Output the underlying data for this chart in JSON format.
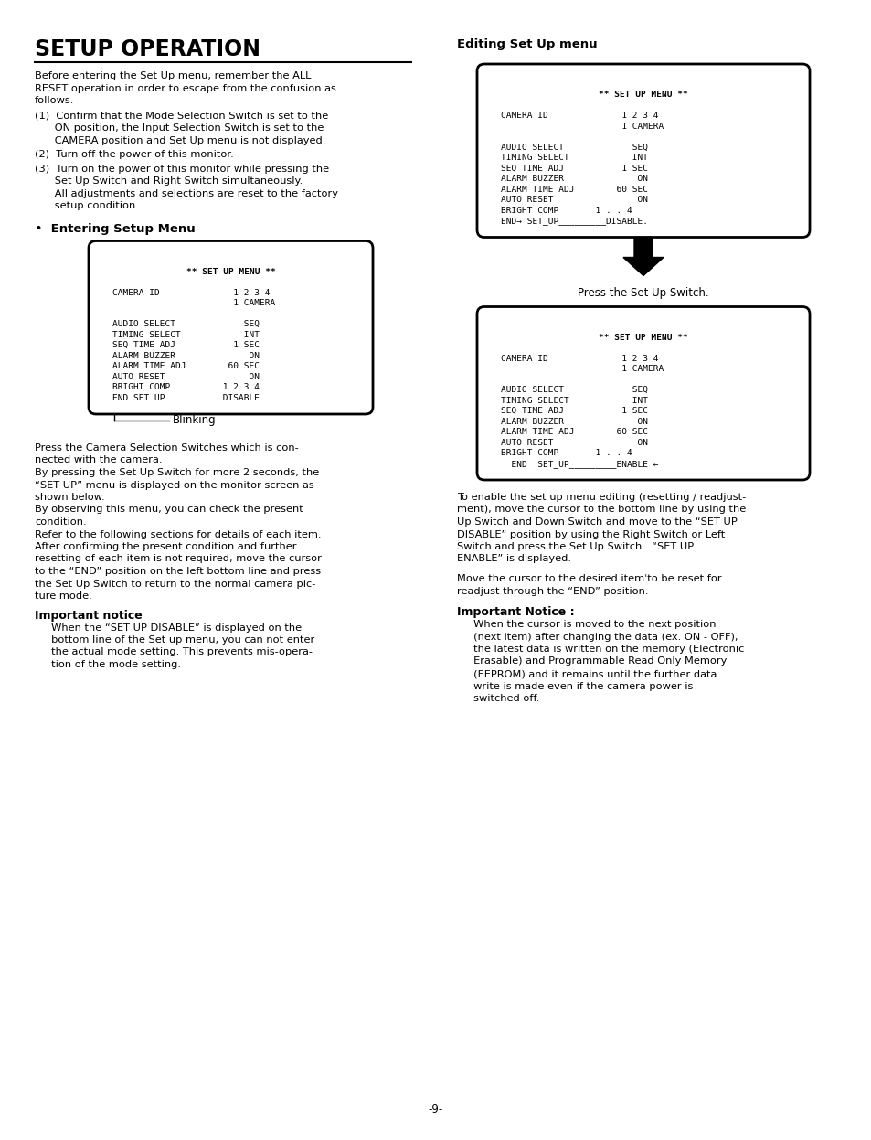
{
  "page_background": "#ffffff",
  "title": "SETUP OPERATION",
  "right_title": "Editing Set Up menu",
  "menu_box1_lines": [
    "** SET UP MENU **",
    "",
    "CAMERA ID              1 2 3 4",
    "                       1 CAMERA",
    "",
    "AUDIO SELECT             SEQ",
    "TIMING SELECT            INT",
    "SEQ TIME ADJ           1 SEC",
    "ALARM BUZZER              ON",
    "ALARM TIME ADJ        60 SEC",
    "AUTO RESET                ON",
    "BRIGHT COMP          1 2 3 4",
    "END SET UP           DISABLE"
  ],
  "blinking_label": "Blinking",
  "menu_box2_lines": [
    "** SET UP MENU **",
    "",
    "CAMERA ID              1 2 3 4",
    "                       1 CAMERA",
    "",
    "AUDIO SELECT             SEQ",
    "TIMING SELECT            INT",
    "SEQ TIME ADJ           1 SEC",
    "ALARM BUZZER              ON",
    "ALARM TIME ADJ        60 SEC",
    "AUTO RESET                ON",
    "BRIGHT COMP       1 . . 4",
    "END→ SET_UP_________DISABLE."
  ],
  "press_setup_label": "Press the Set Up Switch.",
  "menu_box3_lines": [
    "** SET UP MENU **",
    "",
    "CAMERA ID              1 2 3 4",
    "                       1 CAMERA",
    "",
    "AUDIO SELECT             SEQ",
    "TIMING SELECT            INT",
    "SEQ TIME ADJ           1 SEC",
    "ALARM BUZZER              ON",
    "ALARM TIME ADJ        60 SEC",
    "AUTO RESET                ON",
    "BRIGHT COMP       1 . . 4",
    "  END  SET_UP_________ENABLE ←"
  ],
  "page_number": "-9-"
}
